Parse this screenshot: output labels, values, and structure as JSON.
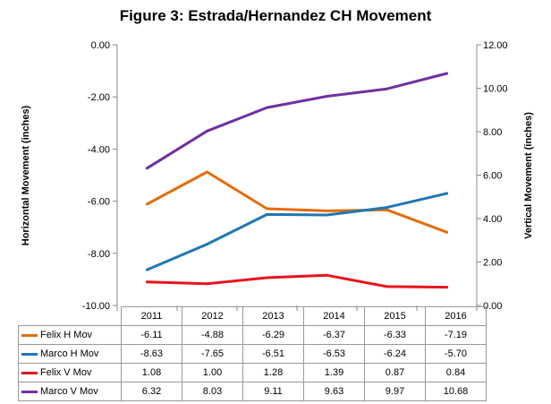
{
  "chart_data": {
    "type": "line",
    "title": "Figure 3: Estrada/Hernandez CH Movement",
    "ylabel": "Horizontal Movement (inches)",
    "y2label": "Vertical Movement (inches)",
    "categories": [
      "2011",
      "2012",
      "2013",
      "2014",
      "2015",
      "2016"
    ],
    "ylim": [
      -10,
      0
    ],
    "y2lim": [
      0,
      12
    ],
    "yticks": [
      "0.00",
      "-2.00",
      "-4.00",
      "-6.00",
      "-8.00",
      "-10.00"
    ],
    "y2ticks": [
      "12.00",
      "10.00",
      "8.00",
      "6.00",
      "4.00",
      "2.00",
      "0.00"
    ],
    "grid": false,
    "legend": "data-table",
    "series": [
      {
        "name": "Felix H Mov",
        "axis": "left",
        "color": "#E46C0A",
        "values": [
          -6.11,
          -4.88,
          -6.29,
          -6.37,
          -6.33,
          -7.19
        ],
        "labels": [
          "-6.11",
          "-4.88",
          "-6.29",
          "-6.37",
          "-6.33",
          "-7.19"
        ]
      },
      {
        "name": "Marco H Mov",
        "axis": "left",
        "color": "#1F77B4",
        "values": [
          -8.63,
          -7.65,
          -6.51,
          -6.53,
          -6.24,
          -5.7
        ],
        "labels": [
          "-8.63",
          "-7.65",
          "-6.51",
          "-6.53",
          "-6.24",
          "-5.70"
        ]
      },
      {
        "name": "Felix V Mov",
        "axis": "right",
        "color": "#E8141C",
        "values": [
          1.08,
          1.0,
          1.28,
          1.39,
          0.87,
          0.84
        ],
        "labels": [
          "1.08",
          "1.00",
          "1.28",
          "1.39",
          "0.87",
          "0.84"
        ]
      },
      {
        "name": "Marco V Mov",
        "axis": "right",
        "color": "#7030A0",
        "values": [
          6.32,
          8.03,
          9.11,
          9.63,
          9.97,
          10.68
        ],
        "labels": [
          "6.32",
          "8.03",
          "9.11",
          "9.63",
          "9.97",
          "10.68"
        ]
      }
    ]
  }
}
